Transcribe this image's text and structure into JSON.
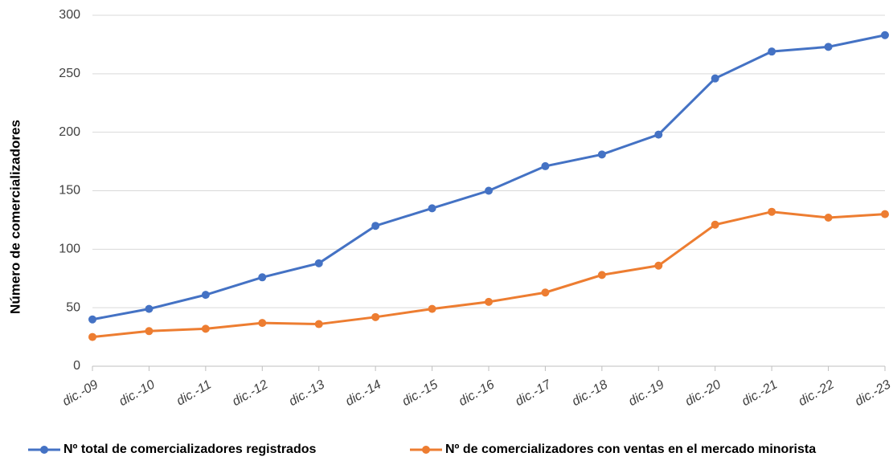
{
  "chart_data": {
    "type": "line",
    "y_label": "Número de comercializadores",
    "categories": [
      "dic.-09",
      "dic.-10",
      "dic.-11",
      "dic.-12",
      "dic.-13",
      "dic.-14",
      "dic.-15",
      "dic.-16",
      "dic.-17",
      "dic.-18",
      "dic.-19",
      "dic.-20",
      "dic.-21",
      "dic.-22",
      "dic.-23"
    ],
    "series": [
      {
        "name": "Nº total de comercializadores registrados",
        "color": "#4472c4",
        "values": [
          40,
          49,
          61,
          76,
          88,
          120,
          135,
          150,
          171,
          181,
          198,
          246,
          269,
          273,
          283
        ]
      },
      {
        "name": "Nº de comercializadores con ventas en el mercado minorista",
        "color": "#ed7d31",
        "values": [
          25,
          30,
          32,
          37,
          36,
          42,
          49,
          55,
          63,
          78,
          86,
          121,
          132,
          127,
          130
        ]
      }
    ],
    "ylim": [
      0,
      300
    ],
    "yticks": [
      0,
      50,
      100,
      150,
      200,
      250,
      300
    ],
    "grid": true,
    "legend": "bottom"
  }
}
